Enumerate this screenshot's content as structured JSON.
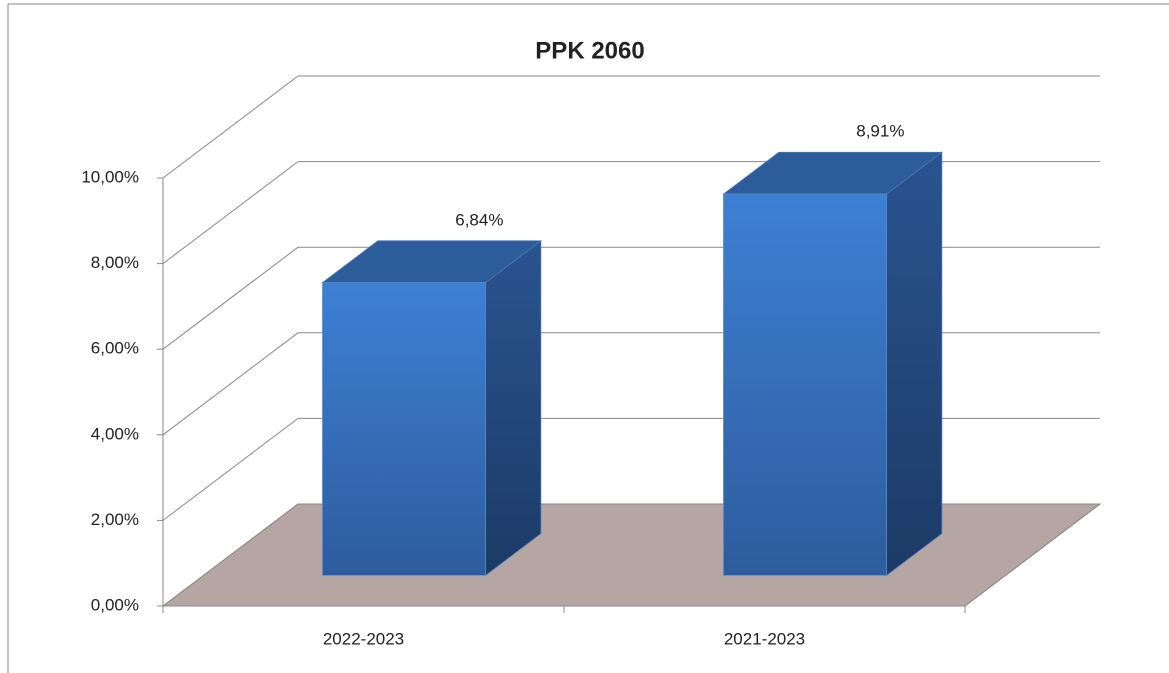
{
  "chart_data": {
    "type": "bar",
    "title": "PPK 2060",
    "categories": [
      "2022-2023",
      "2021-2023"
    ],
    "values": [
      6.84,
      8.91
    ],
    "value_labels": [
      "6,84%",
      "8,91%"
    ],
    "color": "#3a78c8",
    "ylim": [
      0,
      10
    ],
    "yticks": [
      {
        "value": 0,
        "label": "0,00%"
      },
      {
        "value": 2,
        "label": "2,00%"
      },
      {
        "value": 4,
        "label": "4,00%"
      },
      {
        "value": 6,
        "label": "6,00%"
      },
      {
        "value": 8,
        "label": "8,00%"
      },
      {
        "value": 10,
        "label": "10,00%"
      }
    ],
    "grid": true
  }
}
